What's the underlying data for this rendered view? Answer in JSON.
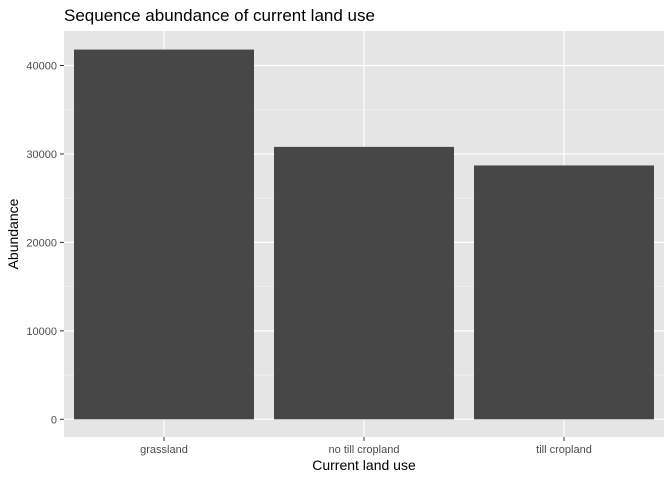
{
  "chart_data": {
    "type": "bar",
    "title": "Sequence abundance of current land use",
    "xlabel": "Current land use",
    "ylabel": "Abundance",
    "categories": [
      "grassland",
      "no till cropland",
      "till cropland"
    ],
    "values": [
      41800,
      30800,
      28700
    ],
    "ylim": [
      -2000,
      43900
    ],
    "yticks": [
      0,
      10000,
      20000,
      30000,
      40000
    ],
    "ytick_labels": [
      "0",
      "10000",
      "20000",
      "30000",
      "40000"
    ],
    "grid": true,
    "legend": "none",
    "colors": {
      "bar": "#474747",
      "panel_background": "#e5e5e5",
      "grid_major": "#ffffff",
      "grid_minor": "#f2f2f2",
      "tick_label": "#4d4d4d",
      "tick_mark": "#333333"
    }
  }
}
